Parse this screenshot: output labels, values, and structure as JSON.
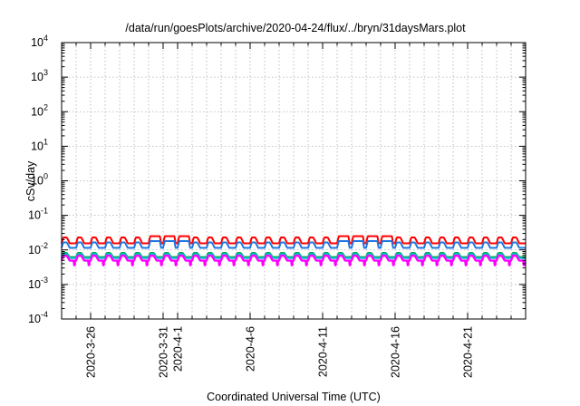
{
  "chart_data": {
    "type": "line",
    "title": "/data/run/goesPlots/archive/2020-04-24/flux/../bryn/31daysMars.plot",
    "xlabel": "Coordinated Universal Time (UTC)",
    "ylabel": "cSv/day",
    "yscale": "log",
    "ylim": [
      0.0001,
      10000
    ],
    "xlim": [
      "2020-03-24",
      "2020-04-25"
    ],
    "grid": true,
    "y_ticks": [
      {
        "value": 0.0001,
        "base": "10",
        "exp": "-4"
      },
      {
        "value": 0.001,
        "base": "10",
        "exp": "-3"
      },
      {
        "value": 0.01,
        "base": "10",
        "exp": "-2"
      },
      {
        "value": 0.1,
        "base": "10",
        "exp": "-1"
      },
      {
        "value": 1,
        "base": "10",
        "exp": "0"
      },
      {
        "value": 10,
        "base": "10",
        "exp": "1"
      },
      {
        "value": 100,
        "base": "10",
        "exp": "2"
      },
      {
        "value": 1000,
        "base": "10",
        "exp": "3"
      },
      {
        "value": 10000,
        "base": "10",
        "exp": "4"
      }
    ],
    "x_ticks": [
      "2020-3-26",
      "2020-3-31",
      "2020-4-1",
      "2020-4-6",
      "2020-4-11",
      "2020-4-16",
      "2020-4-21"
    ],
    "x_tick_dates": [
      "2020-03-26",
      "2020-03-31",
      "2020-04-01",
      "2020-04-06",
      "2020-04-11",
      "2020-04-16",
      "2020-04-21"
    ],
    "series": [
      {
        "color": "#ff0000",
        "baseline": 0.0155,
        "peak": 0.023,
        "high_days": [
          "2020-03-30",
          "2020-03-31",
          "2020-04-01",
          "2020-04-12",
          "2020-04-13",
          "2020-04-14",
          "2020-04-15"
        ],
        "high_peak": 0.025
      },
      {
        "color": "#1f78e0",
        "baseline": 0.0115,
        "peak": 0.0165,
        "high_days": [
          "2020-03-30",
          "2020-03-31",
          "2020-04-01",
          "2020-04-12",
          "2020-04-13",
          "2020-04-14",
          "2020-04-15"
        ],
        "high_peak": 0.018
      },
      {
        "color": "#00aa44",
        "baseline": 0.0062,
        "peak": 0.0082,
        "high_days": [],
        "high_peak": 0.0082
      },
      {
        "color": "#00bcd4",
        "baseline": 0.0058,
        "peak": 0.0076,
        "high_days": [],
        "high_peak": 0.0076
      },
      {
        "color": "#ff00ff",
        "baseline": 0.0049,
        "peak": 0.0068,
        "high_days": [],
        "high_peak": 0.0068,
        "dip": 0.0036
      }
    ]
  }
}
